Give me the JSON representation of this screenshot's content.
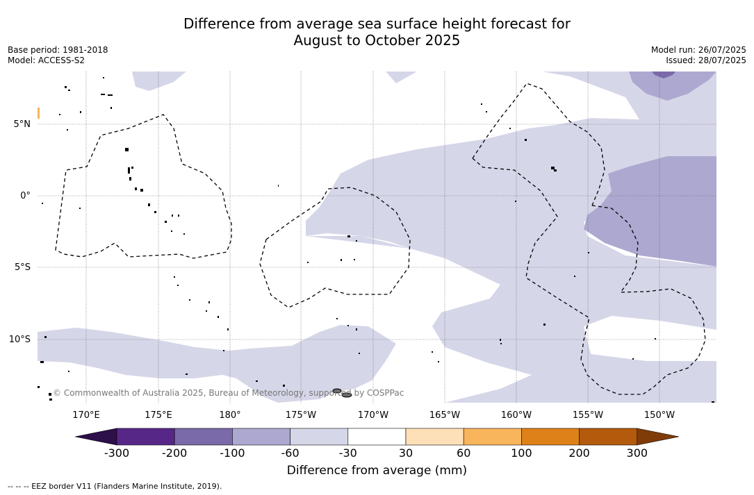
{
  "title_line1": "Difference from average sea surface height forecast for",
  "title_line2": "August to October 2025",
  "meta_left": [
    "Base period: 1981-2018",
    "Model: ACCESS-S2"
  ],
  "meta_right": [
    "Model run: 26/07/2025",
    "Issued: 28/07/2025"
  ],
  "lat_labels": [
    "5°N",
    "0°",
    "5°S",
    "10°S"
  ],
  "lon_labels": [
    "170°E",
    "175°E",
    "180°",
    "175°W",
    "170°W",
    "165°W",
    "160°W",
    "155°W",
    "150°W"
  ],
  "copyright": "© Commonwealth of Australia 2025, Bureau of Meteorology, supported by COSPPac",
  "colorbar": {
    "tick_labels": [
      "-300",
      "-200",
      "-100",
      "-60",
      "-30",
      "30",
      "60",
      "100",
      "200",
      "300"
    ],
    "colors": [
      "#2d0f4a",
      "#572788",
      "#7b6aa9",
      "#ada8d0",
      "#d6d6e9",
      "#ffffff",
      "#fde0b8",
      "#f8b55c",
      "#df8119",
      "#b35a0c",
      "#7f3b08"
    ],
    "label": "Difference from average (mm)"
  },
  "footnote": "--  --  -- EEZ border V11 (Flanders Marine Institute, 2019)."
}
